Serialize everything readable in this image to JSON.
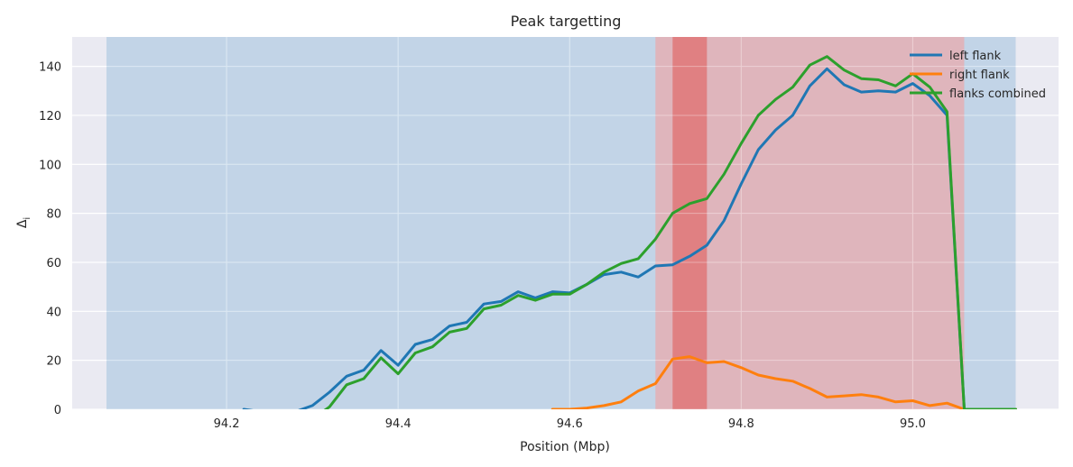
{
  "chart_data": {
    "type": "line",
    "title": "Peak targetting",
    "xlabel": "Position (Mbp)",
    "ylabel": "Δ",
    "ylabel_subscript": "i",
    "xlim": [
      94.02,
      95.17
    ],
    "ylim": [
      0,
      152
    ],
    "xticks": [
      94.2,
      94.4,
      94.6,
      94.8,
      95.0
    ],
    "xtick_labels": [
      "94.2",
      "94.4",
      "94.6",
      "94.8",
      "95.0"
    ],
    "yticks": [
      0,
      20,
      40,
      60,
      80,
      100,
      120,
      140
    ],
    "ytick_labels": [
      "0",
      "20",
      "40",
      "60",
      "80",
      "100",
      "120",
      "140"
    ],
    "grid": true,
    "legend_position": "top-right",
    "background_color": "#eaeaf2",
    "shaded_regions": [
      {
        "x0": 94.06,
        "x1": 95.12,
        "color": "#a7c4e0",
        "opacity": 0.6
      },
      {
        "x0": 94.7,
        "x1": 95.06,
        "color": "#f2a0a0",
        "opacity": 0.6
      },
      {
        "x0": 94.72,
        "x1": 94.76,
        "color": "#e06a6a",
        "opacity": 0.7
      }
    ],
    "x": [
      94.3,
      94.32,
      94.34,
      94.36,
      94.38,
      94.4,
      94.42,
      94.44,
      94.46,
      94.48,
      94.5,
      94.52,
      94.54,
      94.56,
      94.58,
      94.6,
      94.62,
      94.64,
      94.66,
      94.68,
      94.7,
      94.72,
      94.74,
      94.76,
      94.78,
      94.8,
      94.82,
      94.84,
      94.86,
      94.88,
      94.9,
      94.92,
      94.94,
      94.96,
      94.98,
      95.0,
      95.02,
      95.04,
      95.06,
      95.08,
      95.1,
      95.12
    ],
    "series": [
      {
        "name": "left flank",
        "color": "#1f77b4",
        "x": [
          94.22,
          94.24,
          94.26,
          94.28,
          94.3,
          94.32,
          94.34,
          94.36,
          94.38,
          94.4,
          94.42,
          94.44,
          94.46,
          94.48,
          94.5,
          94.52,
          94.54,
          94.56,
          94.58,
          94.6,
          94.62,
          94.64,
          94.66,
          94.68,
          94.7,
          94.72,
          94.74,
          94.76,
          94.78,
          94.8,
          94.82,
          94.84,
          94.86,
          94.88,
          94.9,
          94.92,
          94.94,
          94.96,
          94.98,
          95.0,
          95.02,
          95.04,
          95.06,
          95.08,
          95.1,
          95.12
        ],
        "values": [
          0,
          -1,
          -2,
          -1,
          1.5,
          7,
          13.5,
          16,
          24,
          18,
          26.5,
          28.5,
          34,
          35.5,
          43,
          44,
          48,
          45.5,
          48,
          47.5,
          51,
          55,
          56,
          54,
          58.5,
          59,
          62.5,
          67,
          77,
          92,
          106,
          114,
          120,
          132,
          139,
          132.5,
          129.5,
          130,
          129.5,
          133,
          128,
          120,
          0,
          0,
          0,
          0
        ]
      },
      {
        "name": "right flank",
        "color": "#ff7f0e",
        "x": [
          94.58,
          94.6,
          94.62,
          94.64,
          94.66,
          94.68,
          94.7,
          94.72,
          94.74,
          94.76,
          94.78,
          94.8,
          94.82,
          94.84,
          94.86,
          94.88,
          94.9,
          94.92,
          94.94,
          94.96,
          94.98,
          95.0,
          95.02,
          95.04,
          95.06,
          95.08,
          95.1,
          95.12
        ],
        "values": [
          0,
          0,
          0.5,
          1.5,
          3,
          7.5,
          10.5,
          20.5,
          21.5,
          19,
          19.5,
          17,
          14,
          12.5,
          11.5,
          8.5,
          5,
          5.5,
          6,
          5,
          3,
          3.5,
          1.5,
          2.5,
          0,
          0,
          0,
          0
        ]
      },
      {
        "name": "flanks combined",
        "color": "#2ca02c",
        "x": [
          94.3,
          94.32,
          94.34,
          94.36,
          94.38,
          94.4,
          94.42,
          94.44,
          94.46,
          94.48,
          94.5,
          94.52,
          94.54,
          94.56,
          94.58,
          94.6,
          94.62,
          94.64,
          94.66,
          94.68,
          94.7,
          94.72,
          94.74,
          94.76,
          94.78,
          94.8,
          94.82,
          94.84,
          94.86,
          94.88,
          94.9,
          94.92,
          94.94,
          94.96,
          94.98,
          95.0,
          95.02,
          95.04,
          95.06,
          95.08,
          95.1,
          95.12
        ],
        "values": [
          -4,
          1,
          10,
          12.5,
          21,
          14.5,
          23,
          25.5,
          31.5,
          33,
          41,
          42.5,
          46.5,
          44.5,
          47,
          47,
          51,
          56,
          59.5,
          61.5,
          69.5,
          80,
          84,
          86,
          96,
          108.5,
          120,
          126.5,
          131.5,
          140.5,
          144,
          138.5,
          135,
          134.5,
          132,
          137,
          131.5,
          121.5,
          0,
          0,
          0,
          0
        ]
      }
    ]
  }
}
